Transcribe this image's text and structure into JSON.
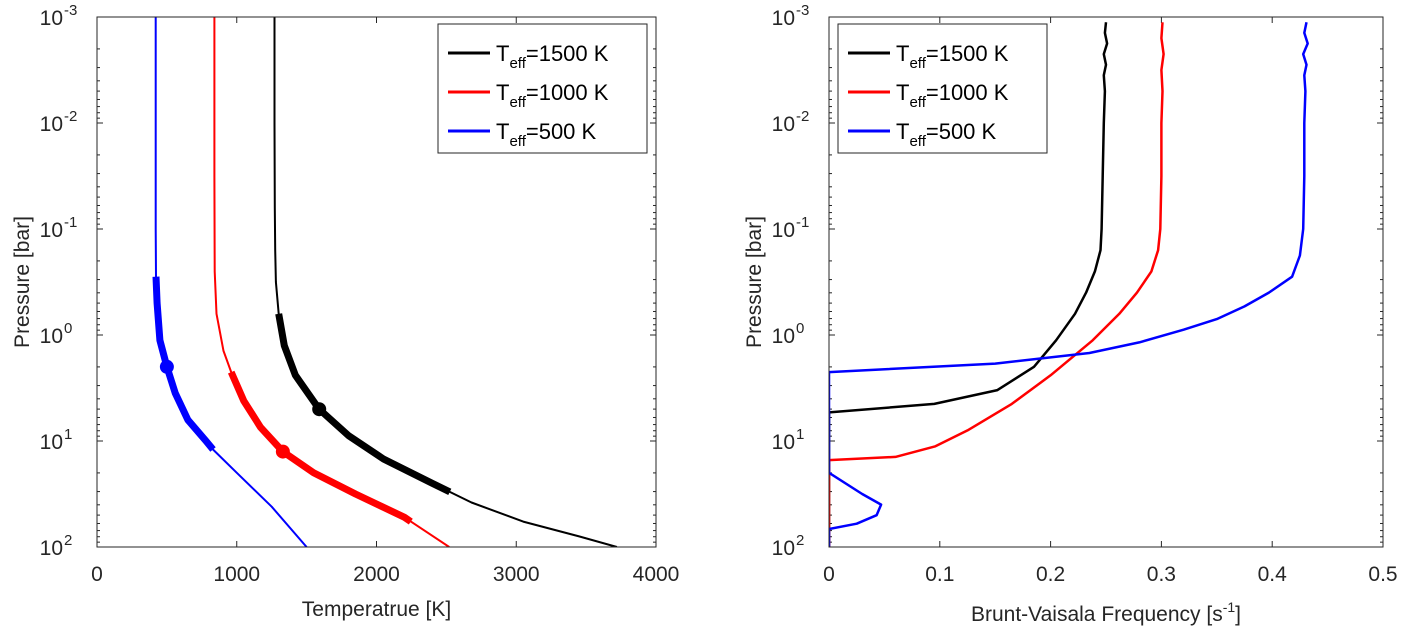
{
  "chart_data": [
    {
      "type": "line",
      "id": "left",
      "xlabel": "Temperatrue [K]",
      "ylabel": "Pressure [bar]",
      "xlim": [
        0,
        4000
      ],
      "ylim_log10": [
        -3,
        2
      ],
      "y_reversed": true,
      "y_scale": "log",
      "xticks": [
        {
          "value": 0,
          "label": "0"
        },
        {
          "value": 1000,
          "label": "1000"
        },
        {
          "value": 2000,
          "label": "2000"
        },
        {
          "value": 3000,
          "label": "3000"
        },
        {
          "value": 4000,
          "label": "4000"
        }
      ],
      "yticks": [
        {
          "exp": -3,
          "label": "10",
          "sup": "-3"
        },
        {
          "exp": -2,
          "label": "10",
          "sup": "-2"
        },
        {
          "exp": -1,
          "label": "10",
          "sup": "-1"
        },
        {
          "exp": 0,
          "label": "10",
          "sup": "0"
        },
        {
          "exp": 1,
          "label": "10",
          "sup": "1"
        },
        {
          "exp": 2,
          "label": "10",
          "sup": "2"
        }
      ],
      "legend": {
        "position": "top-right",
        "entries": [
          {
            "base": "T",
            "sub": "eff",
            "rest": "=1500 K",
            "color": "#000000"
          },
          {
            "base": "T",
            "sub": "eff",
            "rest": "=1000 K",
            "color": "#ff0000"
          },
          {
            "base": "T",
            "sub": "eff",
            "rest": "=500 K",
            "color": "#0000ff"
          }
        ]
      },
      "series": [
        {
          "name": "Teff=1500 K",
          "color": "#000000",
          "points": [
            [
              1270,
              -3
            ],
            [
              1270,
              -2
            ],
            [
              1272,
              -1.2
            ],
            [
              1275,
              -0.8
            ],
            [
              1280,
              -0.5
            ],
            [
              1300,
              -0.2
            ],
            [
              1340,
              0.1
            ],
            [
              1420,
              0.38
            ],
            [
              1590,
              0.7
            ],
            [
              1800,
              0.95
            ],
            [
              2050,
              1.17
            ],
            [
              2400,
              1.4
            ],
            [
              2680,
              1.58
            ],
            [
              3050,
              1.76
            ],
            [
              3450,
              1.9
            ],
            [
              3720,
              2
            ]
          ],
          "thick_range_log10": [
            -0.2,
            1.48
          ],
          "marker": [
            1590,
            0.7
          ]
        },
        {
          "name": "Teff=1000 K",
          "color": "#ff0000",
          "points": [
            [
              840,
              -3
            ],
            [
              840,
              -1.5
            ],
            [
              842,
              -0.6
            ],
            [
              855,
              -0.2
            ],
            [
              905,
              0.15
            ],
            [
              960,
              0.35
            ],
            [
              1050,
              0.62
            ],
            [
              1170,
              0.87
            ],
            [
              1330,
              1.1
            ],
            [
              1550,
              1.3
            ],
            [
              1850,
              1.5
            ],
            [
              2200,
              1.72
            ],
            [
              2520,
              2
            ]
          ],
          "thick_range_log10": [
            0.35,
            1.76
          ],
          "marker": [
            1330,
            1.1
          ]
        },
        {
          "name": "Teff=500 K",
          "color": "#0000ff",
          "points": [
            [
              420,
              -3
            ],
            [
              420,
              -1
            ],
            [
              422,
              -0.55
            ],
            [
              430,
              -0.3
            ],
            [
              450,
              0.05
            ],
            [
              500,
              0.3
            ],
            [
              560,
              0.55
            ],
            [
              650,
              0.8
            ],
            [
              780,
              1.0
            ],
            [
              830,
              1.08
            ],
            [
              1000,
              1.3
            ],
            [
              1250,
              1.62
            ],
            [
              1500,
              2
            ]
          ],
          "thick_range_log10": [
            -0.55,
            1.08
          ],
          "marker": [
            500,
            0.3
          ]
        }
      ]
    },
    {
      "type": "line",
      "id": "right",
      "xlabel": "Brunt-Vaisala Frequency [s",
      "xlabel_sup": "-1",
      "xlabel_tail": "]",
      "ylabel": "Pressure [bar]",
      "xlim": [
        0,
        0.5
      ],
      "ylim_log10": [
        -3,
        2
      ],
      "y_reversed": true,
      "y_scale": "log",
      "xticks": [
        {
          "value": 0,
          "label": "0"
        },
        {
          "value": 0.1,
          "label": "0.1"
        },
        {
          "value": 0.2,
          "label": "0.2"
        },
        {
          "value": 0.3,
          "label": "0.3"
        },
        {
          "value": 0.4,
          "label": "0.4"
        },
        {
          "value": 0.5,
          "label": "0.5"
        }
      ],
      "yticks": [
        {
          "exp": -3,
          "label": "10",
          "sup": "-3"
        },
        {
          "exp": -2,
          "label": "10",
          "sup": "-2"
        },
        {
          "exp": -1,
          "label": "10",
          "sup": "-1"
        },
        {
          "exp": 0,
          "label": "10",
          "sup": "0"
        },
        {
          "exp": 1,
          "label": "10",
          "sup": "1"
        },
        {
          "exp": 2,
          "label": "10",
          "sup": "2"
        }
      ],
      "legend": {
        "position": "top-left",
        "entries": [
          {
            "base": "T",
            "sub": "eff",
            "rest": "=1500 K",
            "color": "#000000"
          },
          {
            "base": "T",
            "sub": "eff",
            "rest": "=1000 K",
            "color": "#ff0000"
          },
          {
            "base": "T",
            "sub": "eff",
            "rest": "=500 K",
            "color": "#0000ff"
          }
        ]
      },
      "series": [
        {
          "name": "Teff=1500 K",
          "color": "#000000",
          "points": [
            [
              0.25,
              -2.95
            ],
            [
              0.249,
              -2.85
            ],
            [
              0.251,
              -2.75
            ],
            [
              0.248,
              -2.65
            ],
            [
              0.25,
              -2.55
            ],
            [
              0.248,
              -2.45
            ],
            [
              0.249,
              -2.3
            ],
            [
              0.248,
              -2.0
            ],
            [
              0.247,
              -1.5
            ],
            [
              0.246,
              -1.0
            ],
            [
              0.245,
              -0.8
            ],
            [
              0.24,
              -0.6
            ],
            [
              0.232,
              -0.4
            ],
            [
              0.222,
              -0.2
            ],
            [
              0.205,
              0.05
            ],
            [
              0.185,
              0.3
            ],
            [
              0.152,
              0.52
            ],
            [
              0.095,
              0.65
            ],
            [
              0.0,
              0.73
            ],
            [
              0.0,
              2
            ]
          ]
        },
        {
          "name": "Teff=1000 K",
          "color": "#ff0000",
          "points": [
            [
              0.301,
              -2.95
            ],
            [
              0.3,
              -2.8
            ],
            [
              0.302,
              -2.65
            ],
            [
              0.3,
              -2.5
            ],
            [
              0.301,
              -2.3
            ],
            [
              0.3,
              -2.0
            ],
            [
              0.3,
              -1.5
            ],
            [
              0.299,
              -1.0
            ],
            [
              0.297,
              -0.8
            ],
            [
              0.291,
              -0.6
            ],
            [
              0.278,
              -0.4
            ],
            [
              0.262,
              -0.2
            ],
            [
              0.238,
              0.05
            ],
            [
              0.2,
              0.38
            ],
            [
              0.165,
              0.65
            ],
            [
              0.125,
              0.9
            ],
            [
              0.096,
              1.05
            ],
            [
              0.06,
              1.15
            ],
            [
              0.0,
              1.18
            ],
            [
              0.0,
              2
            ]
          ]
        },
        {
          "name": "Teff=500 K",
          "color": "#0000ff",
          "points": [
            [
              0.431,
              -2.95
            ],
            [
              0.429,
              -2.85
            ],
            [
              0.432,
              -2.75
            ],
            [
              0.428,
              -2.65
            ],
            [
              0.431,
              -2.55
            ],
            [
              0.429,
              -2.45
            ],
            [
              0.43,
              -2.3
            ],
            [
              0.429,
              -2.0
            ],
            [
              0.429,
              -1.5
            ],
            [
              0.428,
              -1.0
            ],
            [
              0.425,
              -0.75
            ],
            [
              0.418,
              -0.55
            ],
            [
              0.397,
              -0.4
            ],
            [
              0.375,
              -0.27
            ],
            [
              0.35,
              -0.15
            ],
            [
              0.32,
              -0.05
            ],
            [
              0.28,
              0.07
            ],
            [
              0.235,
              0.17
            ],
            [
              0.15,
              0.27
            ],
            [
              0.0,
              0.35
            ],
            [
              0.0,
              1.3
            ],
            [
              0.03,
              1.5
            ],
            [
              0.047,
              1.6
            ],
            [
              0.043,
              1.7
            ],
            [
              0.025,
              1.78
            ],
            [
              0.0,
              1.83
            ],
            [
              0.0,
              2
            ]
          ]
        }
      ]
    }
  ]
}
